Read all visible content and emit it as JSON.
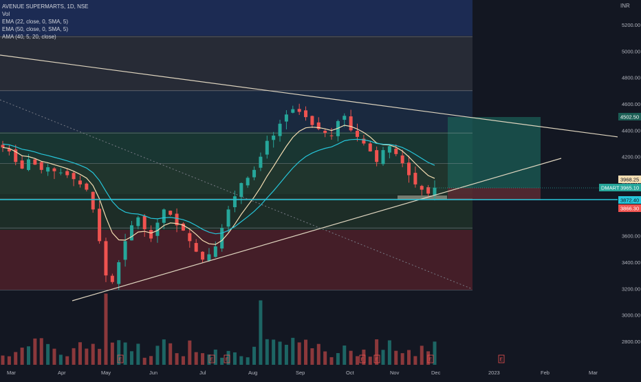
{
  "legend": {
    "symbol": "AVENUE SUPERMARTS, 1D, NSE",
    "vol": "Vol",
    "ema22": "EMA (22, close, 0, SMA, 5)",
    "ema50": "EMA (50, close, 0, SMA, 5)",
    "ama": "AMA (40, 5, 20, close)"
  },
  "price_axis": {
    "currency": "INR",
    "ticks": [
      "5200.00",
      "5000.00",
      "4800.00",
      "4600.00",
      "4400.00",
      "4200.00",
      "4000.00",
      "3800.00",
      "3600.00",
      "3400.00",
      "3200.00",
      "3000.00",
      "2800.00"
    ]
  },
  "time_axis": {
    "labels": [
      "Mar",
      "Apr",
      "May",
      "Jun",
      "Jul",
      "Aug",
      "Sep",
      "Oct",
      "Nov",
      "Dec",
      "2023",
      "Feb",
      "Mar"
    ]
  },
  "price_labels": {
    "target": "4502.50",
    "ema_value": "3968.25",
    "symbol_tag": "DMART",
    "last_price": "3965.10",
    "support": "3872.40",
    "stop": "3866.30"
  },
  "event_markers": [
    "E",
    "E",
    "E",
    "E",
    "E",
    "E",
    "E"
  ],
  "colors": {
    "background": "#131722",
    "up": "#26a69a",
    "down": "#ef5350",
    "ema22": "#f5deb3",
    "ema50": "#26c6da",
    "trend": "#e0d6c0",
    "target_zone": "#1b5e55",
    "stop_zone": "#5a2a33",
    "level_line": "#26c6da"
  },
  "chart_data": {
    "type": "candlestick",
    "symbol": "AVENUE SUPERMARTS",
    "interval": "1D",
    "exchange": "NSE",
    "ylim": [
      2700,
      5400
    ],
    "x_axis": [
      "Mar",
      "Apr",
      "May",
      "Jun",
      "Jul",
      "Aug",
      "Sep",
      "Oct",
      "Nov",
      "Dec",
      "2023",
      "Feb",
      "Mar"
    ],
    "y_ticks": [
      5200,
      5000,
      4800,
      4600,
      4400,
      4200,
      4000,
      3800,
      3600,
      3400,
      3200,
      3000,
      2800
    ],
    "horizontal_levels": [
      5110,
      4700,
      4380,
      4150,
      3880,
      3660,
      3190
    ],
    "position": {
      "entry": 3965.1,
      "target": 4502.5,
      "stop": 3866.3,
      "level": 3872.4,
      "ema_last": 3968.25
    },
    "series_close": [
      4270,
      4240,
      4160,
      4110,
      4180,
      4140,
      4100,
      4120,
      4090,
      4080,
      4060,
      4030,
      3990,
      3950,
      3800,
      3560,
      3300,
      3250,
      3400,
      3560,
      3680,
      3740,
      3650,
      3580,
      3700,
      3800,
      3760,
      3680,
      3640,
      3560,
      3480,
      3420,
      3460,
      3520,
      3660,
      3800,
      3900,
      4000,
      4040,
      4100,
      4200,
      4320,
      4360,
      4450,
      4520,
      4560,
      4540,
      4500,
      4440,
      4410,
      4380,
      4360,
      4470,
      4510,
      4400,
      4350,
      4300,
      4240,
      4160,
      4250,
      4280,
      4220,
      4150,
      4060,
      3990,
      3950,
      3920,
      3965
    ]
  }
}
